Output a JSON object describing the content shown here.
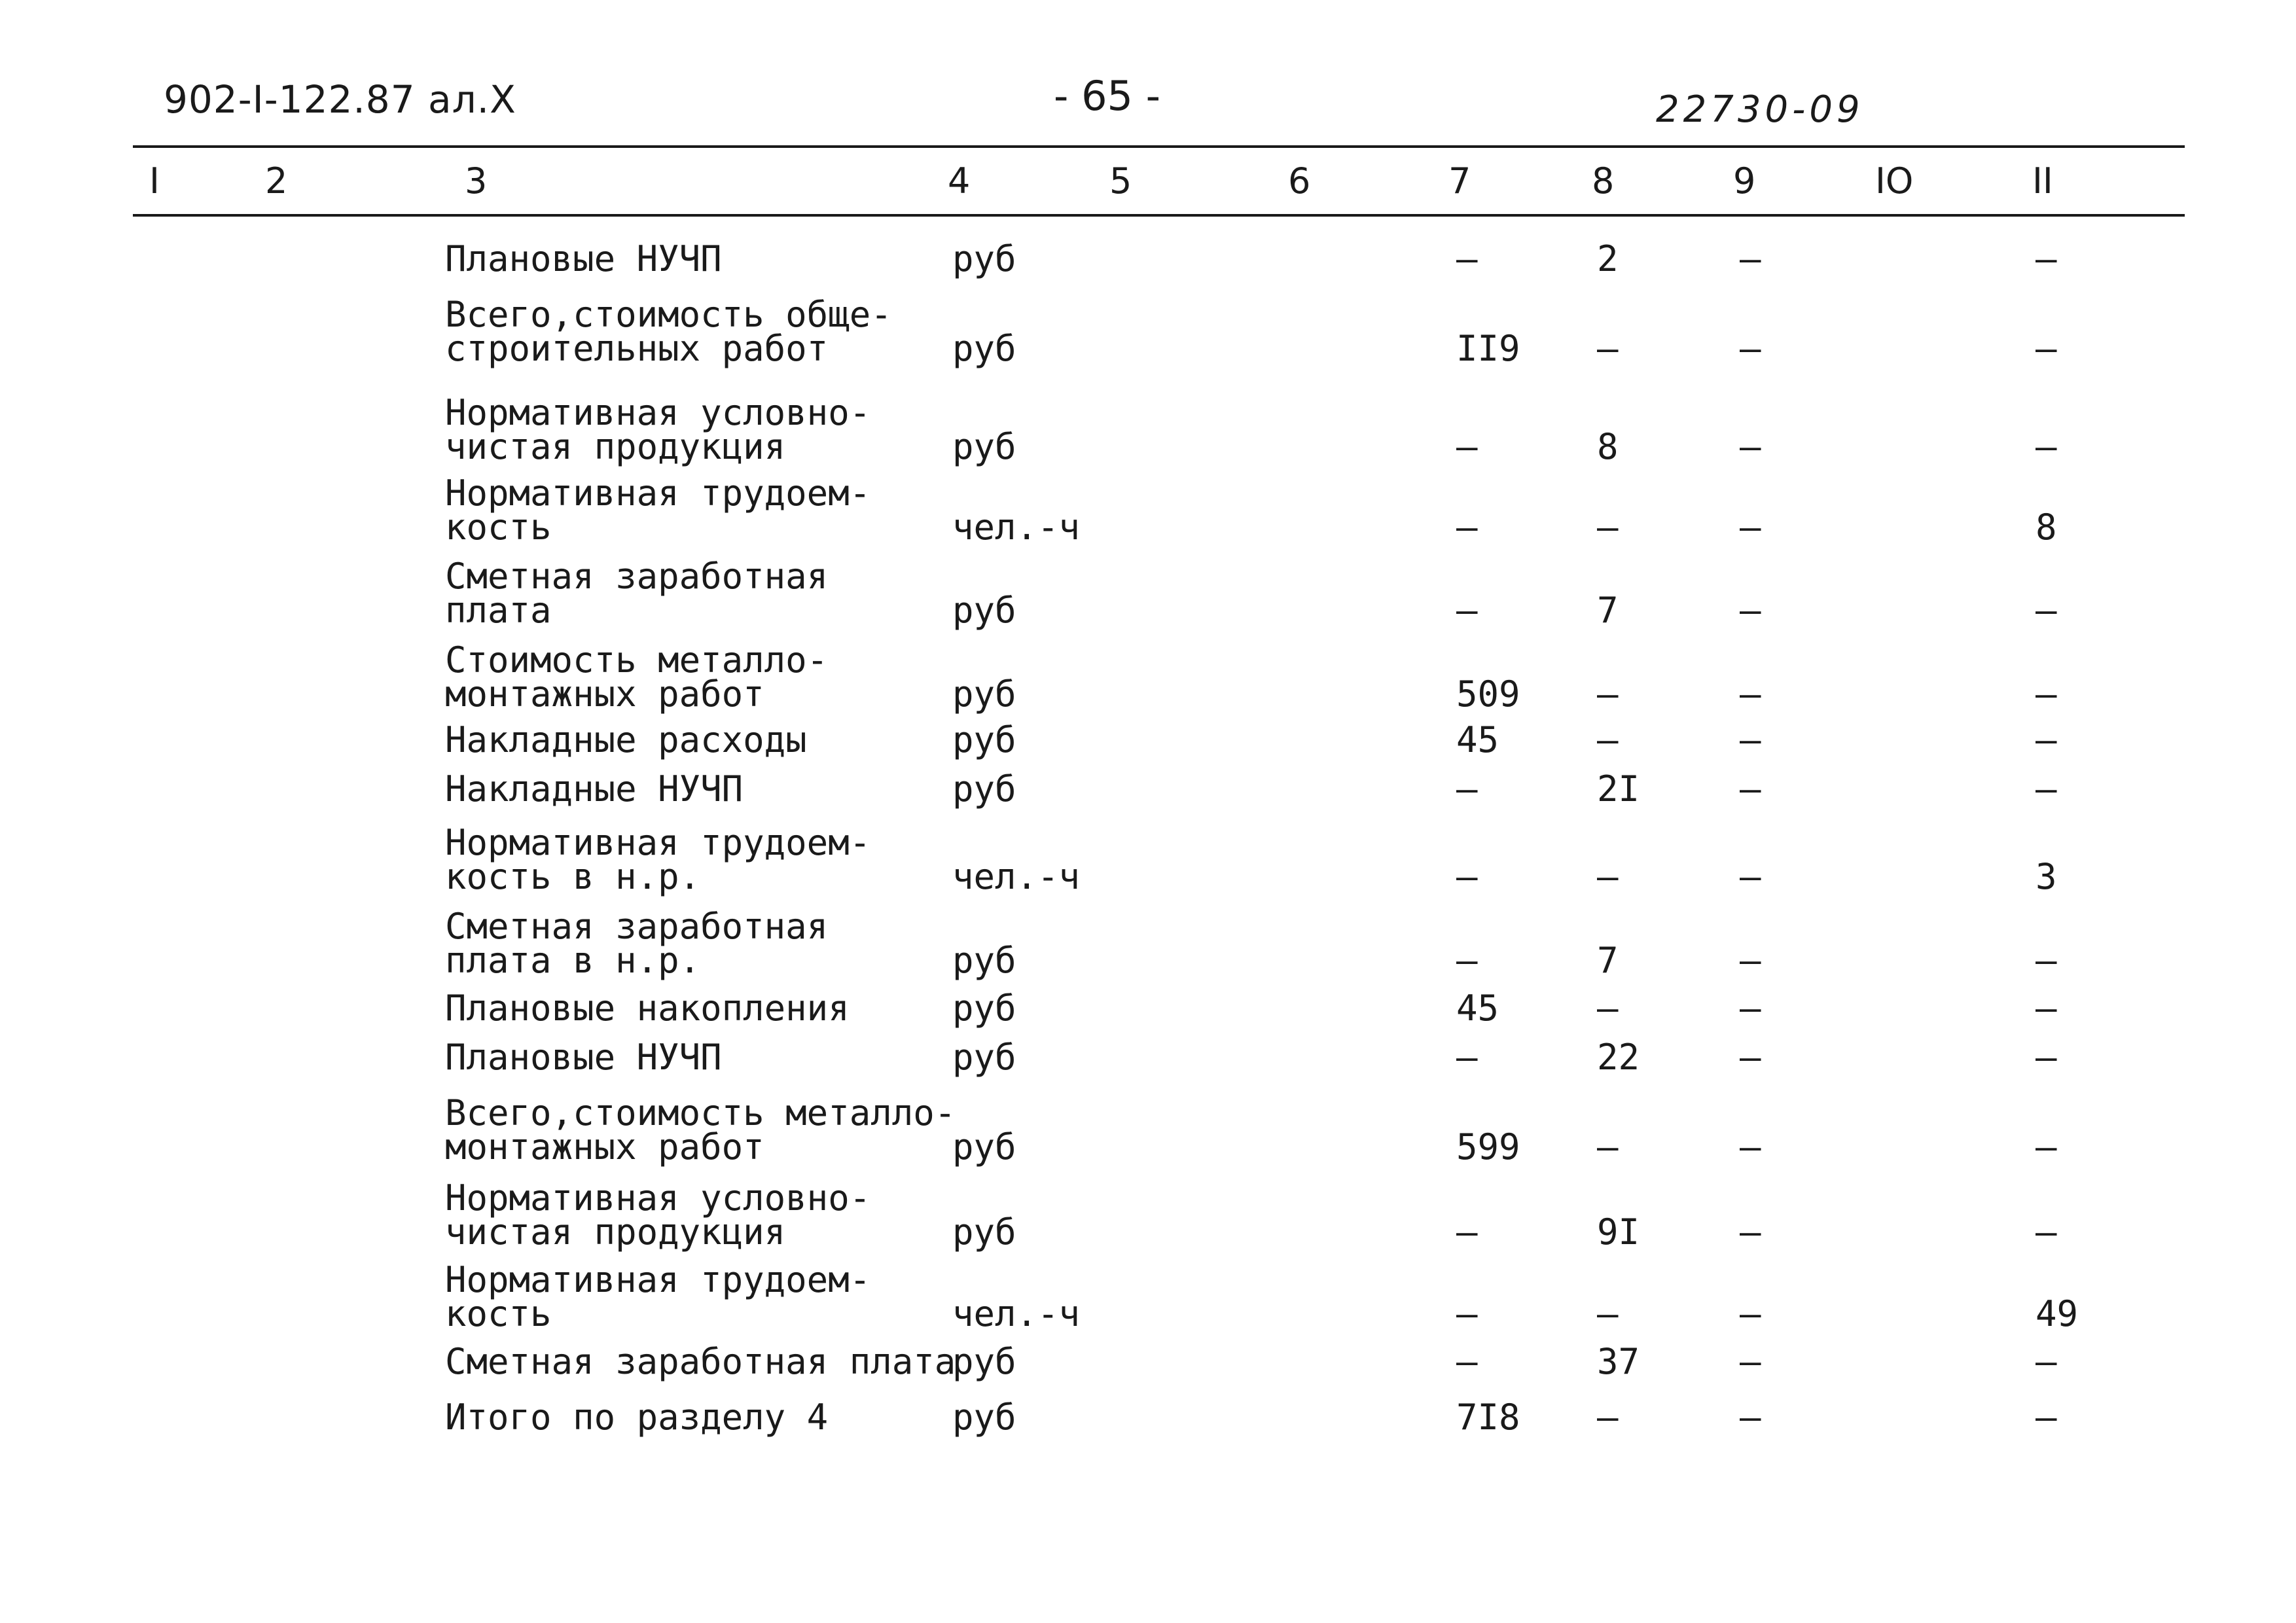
{
  "header": {
    "doc_code": "902-I-122.87 ал.X",
    "page_number": "- 65 -",
    "registry_number": "22730-09"
  },
  "columns": [
    "I",
    "2",
    "3",
    "4",
    "5",
    "6",
    "7",
    "8",
    "9",
    "IO",
    "II"
  ],
  "rows": [
    {
      "desc": [
        "Плановые  НУЧП"
      ],
      "unit": "руб",
      "c7": "–",
      "c8": "2",
      "c9": "–",
      "c11": "–"
    },
    {
      "desc": [
        "Всего,стоимость обще-",
        "строительных работ"
      ],
      "unit": "руб",
      "c7": "II9",
      "c8": "–",
      "c9": "–",
      "c11": "–"
    },
    {
      "desc": [
        "Нормативная условно-",
        "чистая продукция"
      ],
      "unit": "руб",
      "c7": "–",
      "c8": "8",
      "c9": "–",
      "c11": "–"
    },
    {
      "desc": [
        "Нормативная трудоем-",
        "кость"
      ],
      "unit": "чел.-ч",
      "c7": "–",
      "c8": "–",
      "c9": "–",
      "c11": "8"
    },
    {
      "desc": [
        "Сметная заработная",
        "плата"
      ],
      "unit": "руб",
      "c7": "–",
      "c8": "7",
      "c9": "–",
      "c11": "–"
    },
    {
      "desc": [
        "Стоимость металло-",
        "монтажных работ"
      ],
      "unit": "руб",
      "c7": "509",
      "c8": "–",
      "c9": "–",
      "c11": "–"
    },
    {
      "desc": [
        "Накладные расходы"
      ],
      "unit": "руб",
      "c7": "45",
      "c8": "–",
      "c9": "–",
      "c11": "–"
    },
    {
      "desc": [
        "Накладные  НУЧП"
      ],
      "unit": "руб",
      "c7": "–",
      "c8": "2I",
      "c9": "–",
      "c11": "–"
    },
    {
      "desc": [
        "Нормативная трудоем-",
        "кость в н.р."
      ],
      "unit": "чел.-ч",
      "c7": "–",
      "c8": "–",
      "c9": "–",
      "c11": "3"
    },
    {
      "desc": [
        "Сметная заработная",
        "плата в н.р."
      ],
      "unit": "руб",
      "c7": "–",
      "c8": "7",
      "c9": "–",
      "c11": "–"
    },
    {
      "desc": [
        "Плановые  накопления"
      ],
      "unit": "руб",
      "c7": "45",
      "c8": "–",
      "c9": "–",
      "c11": "–"
    },
    {
      "desc": [
        "Плановые  НУЧП"
      ],
      "unit": "руб",
      "c7": "–",
      "c8": "22",
      "c9": "–",
      "c11": "–"
    },
    {
      "desc": [
        "Всего,стоимость металло-",
        "монтажных работ"
      ],
      "unit": "руб",
      "c7": "599",
      "c8": "–",
      "c9": "–",
      "c11": "–"
    },
    {
      "desc": [
        "Нормативная условно-",
        "чистая продукция"
      ],
      "unit": "руб",
      "c7": "–",
      "c8": "9I",
      "c9": "–",
      "c11": "–"
    },
    {
      "desc": [
        "Нормативная трудоем-",
        "кость"
      ],
      "unit": "чел.-ч",
      "c7": "–",
      "c8": "–",
      "c9": "–",
      "c11": "49"
    },
    {
      "desc": [
        "Сметная заработная плата"
      ],
      "unit": "руб",
      "c7": "–",
      "c8": "37",
      "c9": "–",
      "c11": "–"
    },
    {
      "desc": [
        "Итого по разделу 4"
      ],
      "unit": "руб",
      "c7": "7I8",
      "c8": "–",
      "c9": "–",
      "c11": "–"
    }
  ]
}
